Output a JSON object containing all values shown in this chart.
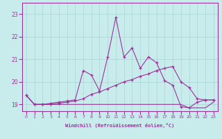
{
  "xlabel": "Windchill (Refroidissement éolien,°C)",
  "background_color": "#c8ecec",
  "grid_color": "#aad4d4",
  "line_color": "#993399",
  "xlim": [
    -0.5,
    23.5
  ],
  "ylim": [
    18.7,
    23.5
  ],
  "yticks": [
    19,
    20,
    21,
    22,
    23
  ],
  "xticks": [
    0,
    1,
    2,
    3,
    4,
    5,
    6,
    7,
    8,
    9,
    10,
    11,
    12,
    13,
    14,
    15,
    16,
    17,
    18,
    19,
    20,
    21,
    22,
    23
  ],
  "hours": [
    0,
    1,
    2,
    3,
    4,
    5,
    6,
    7,
    8,
    9,
    10,
    11,
    12,
    13,
    14,
    15,
    16,
    17,
    18,
    19,
    20,
    21,
    22,
    23
  ],
  "line1": [
    19.4,
    19.0,
    19.0,
    19.05,
    19.1,
    19.15,
    19.2,
    20.5,
    20.3,
    19.6,
    21.1,
    22.85,
    21.1,
    21.5,
    20.6,
    21.1,
    20.85,
    20.05,
    19.85,
    18.9,
    18.85,
    19.1,
    19.2,
    19.2
  ],
  "line2": [
    19.4,
    19.0,
    19.0,
    19.0,
    19.05,
    19.1,
    19.15,
    19.25,
    19.45,
    19.55,
    19.7,
    19.85,
    20.0,
    20.1,
    20.25,
    20.35,
    20.5,
    20.6,
    20.68,
    20.0,
    19.75,
    19.25,
    19.2,
    19.2
  ],
  "line3": [
    19.4,
    19.0,
    19.0,
    19.0,
    19.0,
    19.0,
    19.0,
    19.0,
    19.0,
    19.0,
    19.0,
    19.0,
    19.0,
    19.0,
    19.0,
    19.0,
    19.0,
    19.0,
    19.0,
    19.0,
    18.85,
    18.85,
    18.85,
    19.1
  ]
}
